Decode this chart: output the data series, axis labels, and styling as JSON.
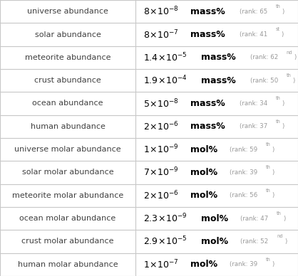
{
  "rows": [
    {
      "label": "universe abundance",
      "coeff": "8",
      "exp": "-8",
      "unit": "mass%",
      "rank": "65",
      "rank_suffix": "th"
    },
    {
      "label": "solar abundance",
      "coeff": "8",
      "exp": "-7",
      "unit": "mass%",
      "rank": "41",
      "rank_suffix": "st"
    },
    {
      "label": "meteorite abundance",
      "coeff": "1.4",
      "exp": "-5",
      "unit": "mass%",
      "rank": "62",
      "rank_suffix": "nd"
    },
    {
      "label": "crust abundance",
      "coeff": "1.9",
      "exp": "-4",
      "unit": "mass%",
      "rank": "50",
      "rank_suffix": "th"
    },
    {
      "label": "ocean abundance",
      "coeff": "5",
      "exp": "-8",
      "unit": "mass%",
      "rank": "34",
      "rank_suffix": "th"
    },
    {
      "label": "human abundance",
      "coeff": "2",
      "exp": "-6",
      "unit": "mass%",
      "rank": "37",
      "rank_suffix": "th"
    },
    {
      "label": "universe molar abundance",
      "coeff": "1",
      "exp": "-9",
      "unit": "mol%",
      "rank": "59",
      "rank_suffix": "th"
    },
    {
      "label": "solar molar abundance",
      "coeff": "7",
      "exp": "-9",
      "unit": "mol%",
      "rank": "39",
      "rank_suffix": "th"
    },
    {
      "label": "meteorite molar abundance",
      "coeff": "2",
      "exp": "-6",
      "unit": "mol%",
      "rank": "56",
      "rank_suffix": "th"
    },
    {
      "label": "ocean molar abundance",
      "coeff": "2.3",
      "exp": "-9",
      "unit": "mol%",
      "rank": "47",
      "rank_suffix": "th"
    },
    {
      "label": "crust molar abundance",
      "coeff": "2.9",
      "exp": "-5",
      "unit": "mol%",
      "rank": "52",
      "rank_suffix": "nd"
    },
    {
      "label": "human molar abundance",
      "coeff": "1",
      "exp": "-7",
      "unit": "mol%",
      "rank": "39",
      "rank_suffix": "th"
    }
  ],
  "bg_color": "#ffffff",
  "grid_color": "#c8c8c8",
  "label_color": "#404040",
  "value_color": "#000000",
  "rank_color": "#999999",
  "col_split": 0.455,
  "label_fontsize": 8.0,
  "value_fontsize": 9.0,
  "rank_fontsize": 6.2,
  "rank_sup_fontsize": 4.8
}
